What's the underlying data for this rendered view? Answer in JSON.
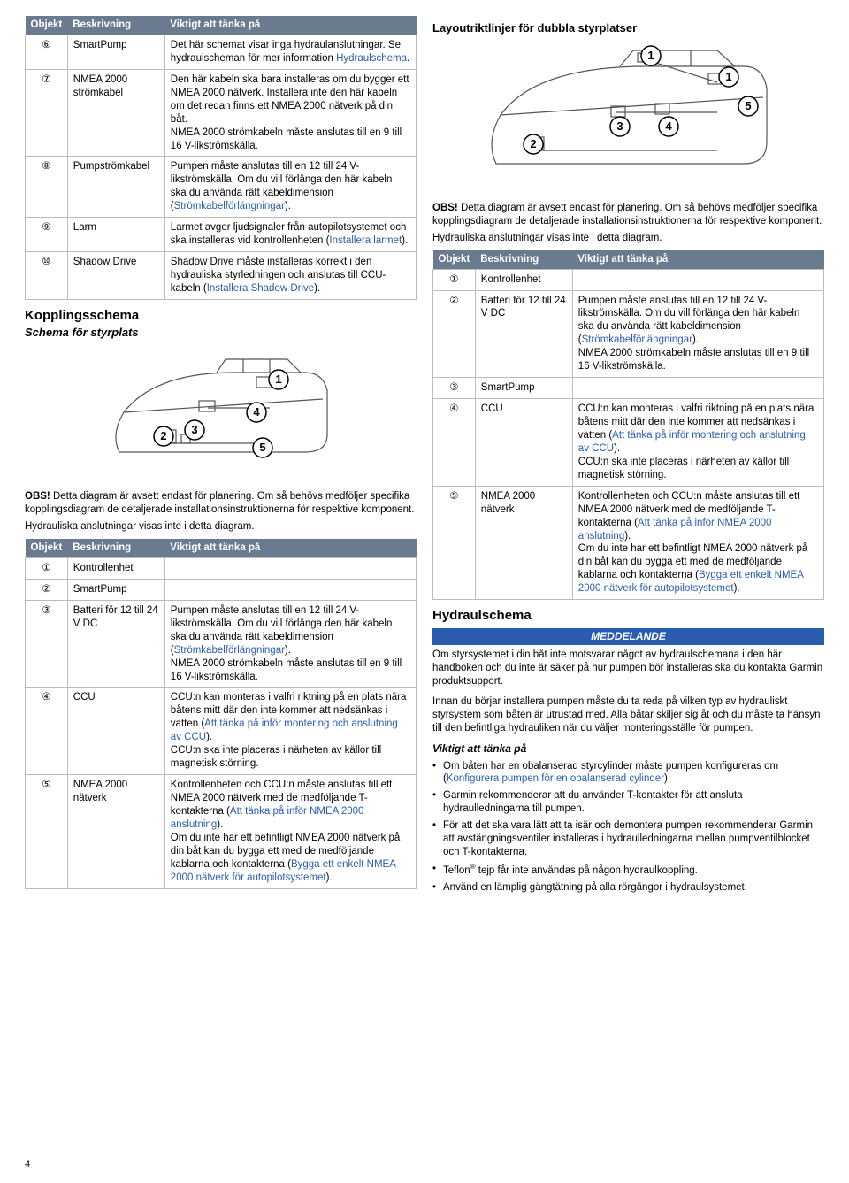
{
  "pageNumber": "4",
  "table1": {
    "headers": [
      "Objekt",
      "Beskrivning",
      "Viktigt att tänka på"
    ],
    "rows": [
      {
        "obj": "⑥",
        "desc": "SmartPump",
        "note": "Det här schemat visar inga hydraulanslutningar. Se hydraulscheman för mer information ",
        "link": "Hydraulschema",
        "after": "."
      },
      {
        "obj": "⑦",
        "desc": "NMEA 2000 strömkabel",
        "note": "Den här kabeln ska bara installeras om du bygger ett NMEA 2000 nätverk. Installera inte den här kabeln om det redan finns ett NMEA 2000 nätverk på din båt.\nNMEA 2000 strömkabeln måste anslutas till en 9 till 16 V-likströmskälla."
      },
      {
        "obj": "⑧",
        "desc": "Pumpströmkabel",
        "note": "Pumpen måste anslutas till en 12 till 24 V-likströmskälla. Om du vill förlänga den här kabeln ska du använda rätt kabeldimension (",
        "link": "Strömkabelförlängningar",
        "after": ")."
      },
      {
        "obj": "⑨",
        "desc": "Larm",
        "note": "Larmet avger ljudsignaler från autopilotsystemet och ska installeras vid kontrollenheten (",
        "link": "Installera larmet",
        "after": ")."
      },
      {
        "obj": "⑩",
        "desc": "Shadow Drive",
        "note": "Shadow Drive måste installeras korrekt i den hydrauliska styrledningen och anslutas till CCU-kabeln (",
        "link": "Installera Shadow Drive",
        "after": ")."
      }
    ]
  },
  "kopplings": {
    "title": "Kopplingsschema",
    "subtitle": "Schema för styrplats"
  },
  "noteText1a": "OBS!",
  "noteText1b": " Detta diagram är avsett endast för planering. Om så behövs medföljer specifika kopplingsdiagram de detaljerade installationsinstruktionerna för respektive komponent.",
  "noteText2": "Hydrauliska anslutningar visas inte i detta diagram.",
  "table2": {
    "headers": [
      "Objekt",
      "Beskrivning",
      "Viktigt att tänka på"
    ],
    "rows": [
      {
        "obj": "①",
        "desc": "Kontrollenhet",
        "note": ""
      },
      {
        "obj": "②",
        "desc": "SmartPump",
        "note": ""
      },
      {
        "obj": "③",
        "desc": "Batteri för 12 till 24 V DC",
        "note": "Pumpen måste anslutas till en 12 till 24 V-likströmskälla. Om du vill förlänga den här kabeln ska du använda rätt kabeldimension (",
        "link": "Strömkabelförlängningar",
        "after": ").\nNMEA 2000 strömkabeln måste anslutas till en 9 till 16 V-likströmskälla."
      },
      {
        "obj": "④",
        "desc": "CCU",
        "note": "CCU:n kan monteras i valfri riktning på en plats nära båtens mitt där den inte kommer att nedsänkas i vatten (",
        "link": "Att tänka på inför montering och anslutning av CCU",
        "after": ").\nCCU:n ska inte placeras i närheten av källor till magnetisk störning."
      },
      {
        "obj": "⑤",
        "desc": "NMEA 2000 nätverk",
        "note": "Kontrollenheten och CCU:n måste anslutas till ett NMEA 2000 nätverk med de medföljande T-kontakterna (",
        "link": "Att tänka på inför NMEA 2000 anslutning",
        "after": ").\nOm du inte har ett befintligt NMEA 2000 nätverk på din båt kan du bygga ett med de medföljande kablarna och kontakterna (",
        "link2": "Bygga ett enkelt NMEA 2000 nätverk för autopilotsystemet",
        "after2": ")."
      }
    ]
  },
  "layout": {
    "title": "Layoutriktlinjer för dubbla styrplatser"
  },
  "table3": {
    "headers": [
      "Objekt",
      "Beskrivning",
      "Viktigt att tänka på"
    ],
    "rows": [
      {
        "obj": "①",
        "desc": "Kontrollenhet",
        "note": ""
      },
      {
        "obj": "②",
        "desc": "Batteri för 12 till 24 V DC",
        "note": "Pumpen måste anslutas till en 12 till 24 V-likströmskälla. Om du vill förlänga den här kabeln ska du använda rätt kabeldimension (",
        "link": "Strömkabelförlängningar",
        "after": ").\nNMEA 2000 strömkabeln måste anslutas till en 9 till 16 V-likströmskälla."
      },
      {
        "obj": "③",
        "desc": "SmartPump",
        "note": ""
      },
      {
        "obj": "④",
        "desc": "CCU",
        "note": "CCU:n kan monteras i valfri riktning på en plats nära båtens mitt där den inte kommer att nedsänkas i vatten (",
        "link": "Att tänka på inför montering och anslutning av CCU",
        "after": ").\nCCU:n ska inte placeras i närheten av källor till magnetisk störning."
      },
      {
        "obj": "⑤",
        "desc": "NMEA 2000 nätverk",
        "note": "Kontrollenheten och CCU:n måste anslutas till ett NMEA 2000 nätverk med de medföljande T-kontakterna (",
        "link": "Att tänka på inför NMEA 2000 anslutning",
        "after": ").\nOm du inte har ett befintligt NMEA 2000 nätverk på din båt kan du bygga ett med de medföljande kablarna och kontakterna (",
        "link2": "Bygga ett enkelt NMEA 2000 nätverk för autopilotsystemet",
        "after2": ")."
      }
    ]
  },
  "hydraul": {
    "title": "Hydraulschema",
    "notice": "MEDDELANDE",
    "p1": "Om styrsystemet i din båt inte motsvarar något av hydraulschemana i den här handboken och du inte är säker på hur pumpen bör installeras ska du kontakta Garmin produktsupport.",
    "p2": "Innan du börjar installera pumpen måste du ta reda på vilken typ av hydrauliskt styrsystem som båten är utrustad med. Alla båtar skiljer sig åt och du måste ta hänsyn till den befintliga hydrauliken när du väljer monteringsställe för pumpen.",
    "bulletHeader": "Viktigt att tänka på",
    "bullets": [
      {
        "t": "Om båten har en obalanserad styrcylinder måste pumpen konfigureras om (",
        "link": "Konfigurera pumpen för en obalanserad cylinder",
        "after": ")."
      },
      {
        "t": "Garmin rekommenderar att du använder T-kontakter för att ansluta hydraulledningarna till pumpen."
      },
      {
        "t": "För att det ska vara lätt att ta isär och demontera pumpen rekommenderar Garmin att avstängningsventiler installeras i hydraulledningarna mellan pumpventilblocket och T-kontakterna."
      },
      {
        "t": "Teflon",
        "sup": "®",
        "after": " tejp får inte användas på någon hydraulkoppling."
      },
      {
        "t": "Använd en lämplig gängtätning på alla rörgängor i hydraulsystemet."
      }
    ]
  },
  "boatLabels": [
    "1",
    "2",
    "3",
    "4",
    "5"
  ],
  "colors": {
    "headerBg": "#6a7b8f",
    "link": "#2a5db0",
    "border": "#bbbbbb"
  }
}
